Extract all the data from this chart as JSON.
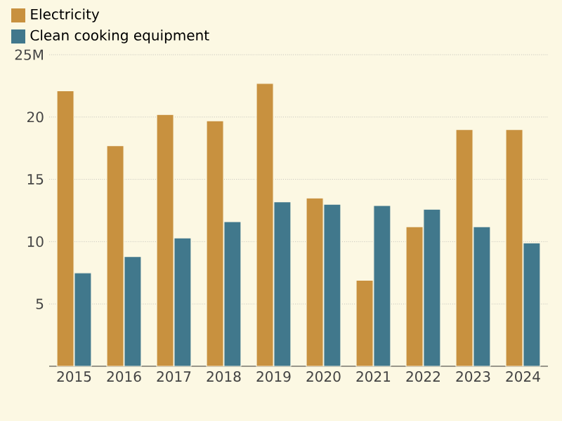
{
  "chart_data": {
    "type": "bar",
    "categories": [
      "2015",
      "2016",
      "2017",
      "2018",
      "2019",
      "2020",
      "2021",
      "2022",
      "2023",
      "2024"
    ],
    "series": [
      {
        "name": "Electricity",
        "color": "#c8913f",
        "values": [
          22.1,
          17.7,
          20.2,
          19.7,
          22.7,
          13.5,
          6.9,
          11.2,
          19.0,
          19.0
        ]
      },
      {
        "name": "Clean cooking equipment",
        "color": "#41788c",
        "values": [
          7.5,
          8.8,
          10.3,
          11.6,
          13.2,
          13.0,
          12.9,
          12.6,
          11.2,
          9.9
        ]
      }
    ],
    "ylim": [
      0,
      25
    ],
    "yticks": [
      5,
      10,
      15,
      20,
      {
        "value": 25,
        "label": "25M"
      }
    ],
    "grid": "y",
    "legend": "top left"
  }
}
